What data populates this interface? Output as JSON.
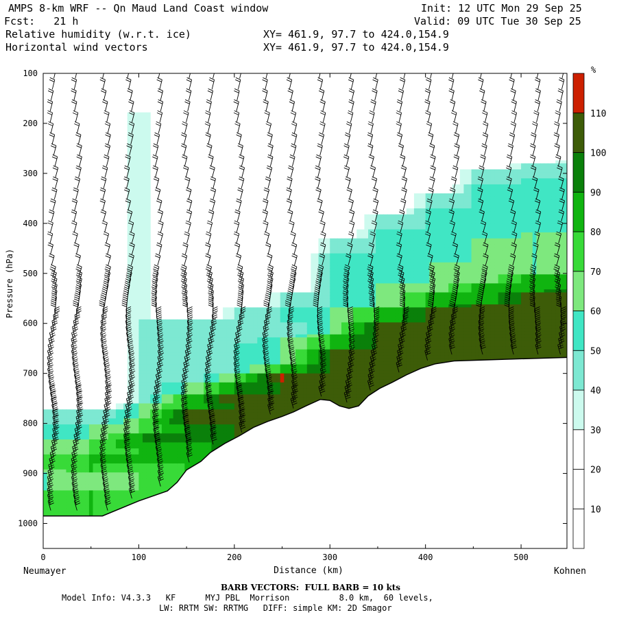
{
  "header": {
    "line1_left": "AMPS 8-km WRF -- Qn Maud Land Coast window",
    "line1_right": "Init: 12 UTC Mon 29 Sep 25",
    "line2_left": "Fcst:   21 h",
    "line2_right": "Valid: 09 UTC Tue 30 Sep 25",
    "line3_left": "Relative humidity (w.r.t. ice)",
    "line3_right": "XY= 461.9, 97.7 to 424.0,154.9",
    "line4_left": "Horizontal wind vectors",
    "line4_right": "XY= 461.9, 97.7 to 424.0,154.9"
  },
  "footer": {
    "barb_note": "BARB VECTORS:  FULL BARB = 10 kts",
    "model_info": "Model Info: V4.3.3   KF      MYJ PBL  Morrison          8.0 km,  60 levels,",
    "model_info2": "LW: RRTM SW: RRTMG   DIFF: simple KM: 2D Smagor"
  },
  "chart_data": {
    "type": "heatmap",
    "title": "Relative humidity (w.r.t. ice) and horizontal wind vectors cross-section",
    "xlabel": "Distance (km)",
    "ylabel": "Pressure (hPa)",
    "x_endpoints": {
      "left": "Neumayer",
      "right": "Kohnen"
    },
    "xlim": [
      0,
      548
    ],
    "ylim": [
      100,
      1050
    ],
    "x_ticks": [
      0,
      100,
      200,
      300,
      400,
      500
    ],
    "y_ticks": [
      100,
      200,
      300,
      400,
      500,
      600,
      700,
      800,
      900,
      1000
    ],
    "colorbar": {
      "unit": "%",
      "levels": [
        10,
        20,
        30,
        40,
        50,
        60,
        70,
        80,
        90,
        100,
        110
      ],
      "colors": [
        "#ffffff",
        "#ffffff",
        "#ffffff",
        "#ccfaee",
        "#7de8d2",
        "#40e6c4",
        "#7ee87e",
        "#38da38",
        "#10b410",
        "#0a800a",
        "#3d5c08",
        "#cc2000"
      ]
    },
    "terrain_surface": [
      {
        "x": 0,
        "p": 985
      },
      {
        "x": 62,
        "p": 985
      },
      {
        "x": 100,
        "p": 955
      },
      {
        "x": 130,
        "p": 935
      },
      {
        "x": 140,
        "p": 918
      },
      {
        "x": 150,
        "p": 893
      },
      {
        "x": 165,
        "p": 876
      },
      {
        "x": 175,
        "p": 858
      },
      {
        "x": 190,
        "p": 840
      },
      {
        "x": 205,
        "p": 825
      },
      {
        "x": 220,
        "p": 808
      },
      {
        "x": 235,
        "p": 796
      },
      {
        "x": 250,
        "p": 786
      },
      {
        "x": 262,
        "p": 777
      },
      {
        "x": 275,
        "p": 765
      },
      {
        "x": 290,
        "p": 752
      },
      {
        "x": 300,
        "p": 754
      },
      {
        "x": 310,
        "p": 765
      },
      {
        "x": 320,
        "p": 770
      },
      {
        "x": 330,
        "p": 765
      },
      {
        "x": 340,
        "p": 745
      },
      {
        "x": 352,
        "p": 730
      },
      {
        "x": 365,
        "p": 718
      },
      {
        "x": 380,
        "p": 703
      },
      {
        "x": 395,
        "p": 690
      },
      {
        "x": 410,
        "p": 681
      },
      {
        "x": 430,
        "p": 675
      },
      {
        "x": 480,
        "p": 672
      },
      {
        "x": 548,
        "p": 668
      }
    ],
    "rh_profiles": [
      {
        "x": 0,
        "levels": [
          [
            800,
            40
          ],
          [
            830,
            50
          ],
          [
            860,
            60
          ],
          [
            890,
            70
          ],
          [
            935,
            60
          ],
          [
            970,
            70
          ]
        ]
      },
      {
        "x": 50,
        "levels": [
          [
            800,
            40
          ],
          [
            830,
            60
          ],
          [
            860,
            70
          ],
          [
            900,
            80
          ],
          [
            935,
            60
          ],
          [
            970,
            80
          ]
        ]
      },
      {
        "x": 100,
        "levels": [
          [
            210,
            40
          ],
          [
            270,
            40
          ],
          [
            760,
            40
          ],
          [
            790,
            60
          ],
          [
            820,
            70
          ],
          [
            850,
            90
          ],
          [
            880,
            80
          ],
          [
            920,
            70
          ]
        ]
      },
      {
        "x": 150,
        "levels": [
          [
            620,
            40
          ],
          [
            660,
            40
          ],
          [
            720,
            40
          ],
          [
            740,
            60
          ],
          [
            770,
            80
          ],
          [
            800,
            100
          ],
          [
            840,
            90
          ],
          [
            880,
            80
          ]
        ]
      },
      {
        "x": 200,
        "levels": [
          [
            600,
            40
          ],
          [
            640,
            40
          ],
          [
            700,
            50
          ],
          [
            720,
            70
          ],
          [
            740,
            90
          ],
          [
            760,
            110
          ],
          [
            790,
            100
          ]
        ]
      },
      {
        "x": 250,
        "levels": [
          [
            570,
            40
          ],
          [
            600,
            50
          ],
          [
            630,
            40
          ],
          [
            680,
            60
          ],
          [
            700,
            80
          ],
          [
            720,
            110
          ],
          [
            760,
            100
          ]
        ]
      },
      {
        "x": 300,
        "levels": [
          [
            460,
            40
          ],
          [
            520,
            50
          ],
          [
            570,
            50
          ],
          [
            620,
            60
          ],
          [
            650,
            80
          ],
          [
            670,
            100
          ],
          [
            720,
            100
          ]
        ]
      },
      {
        "x": 350,
        "levels": [
          [
            410,
            40
          ],
          [
            460,
            50
          ],
          [
            520,
            50
          ],
          [
            570,
            60
          ],
          [
            600,
            80
          ],
          [
            620,
            100
          ],
          [
            700,
            100
          ]
        ]
      },
      {
        "x": 400,
        "levels": [
          [
            370,
            40
          ],
          [
            420,
            50
          ],
          [
            480,
            50
          ],
          [
            540,
            60
          ],
          [
            570,
            80
          ],
          [
            590,
            100
          ],
          [
            660,
            100
          ]
        ]
      },
      {
        "x": 450,
        "levels": [
          [
            320,
            40
          ],
          [
            370,
            50
          ],
          [
            430,
            50
          ],
          [
            520,
            60
          ],
          [
            560,
            80
          ],
          [
            580,
            100
          ],
          [
            650,
            100
          ]
        ]
      },
      {
        "x": 500,
        "levels": [
          [
            310,
            40
          ],
          [
            360,
            50
          ],
          [
            420,
            50
          ],
          [
            500,
            60
          ],
          [
            540,
            80
          ],
          [
            570,
            100
          ],
          [
            650,
            100
          ]
        ]
      },
      {
        "x": 548,
        "levels": [
          [
            305,
            40
          ],
          [
            350,
            50
          ],
          [
            410,
            50
          ],
          [
            500,
            60
          ],
          [
            530,
            80
          ],
          [
            560,
            100
          ],
          [
            640,
            100
          ]
        ]
      }
    ],
    "wind_barb_columns_km": [
      10,
      35,
      65,
      90,
      120,
      150,
      175,
      205,
      235,
      260,
      290,
      320,
      345,
      375,
      405,
      430,
      460,
      490,
      515,
      540
    ],
    "wind_barbs_note": "Wind barbs in knots; full barb = 10 kts",
    "wind_barbs_typical": [
      {
        "p": 150,
        "speed_kt": 15,
        "dir_deg": 300
      },
      {
        "p": 300,
        "speed_kt": 20,
        "dir_deg": 290
      },
      {
        "p": 500,
        "speed_kt": 25,
        "dir_deg": 280
      },
      {
        "p": 650,
        "speed_kt": 30,
        "dir_deg": 100
      },
      {
        "p": 800,
        "speed_kt": 40,
        "dir_deg": 100
      },
      {
        "p": 950,
        "speed_kt": 25,
        "dir_deg": 90
      }
    ]
  }
}
